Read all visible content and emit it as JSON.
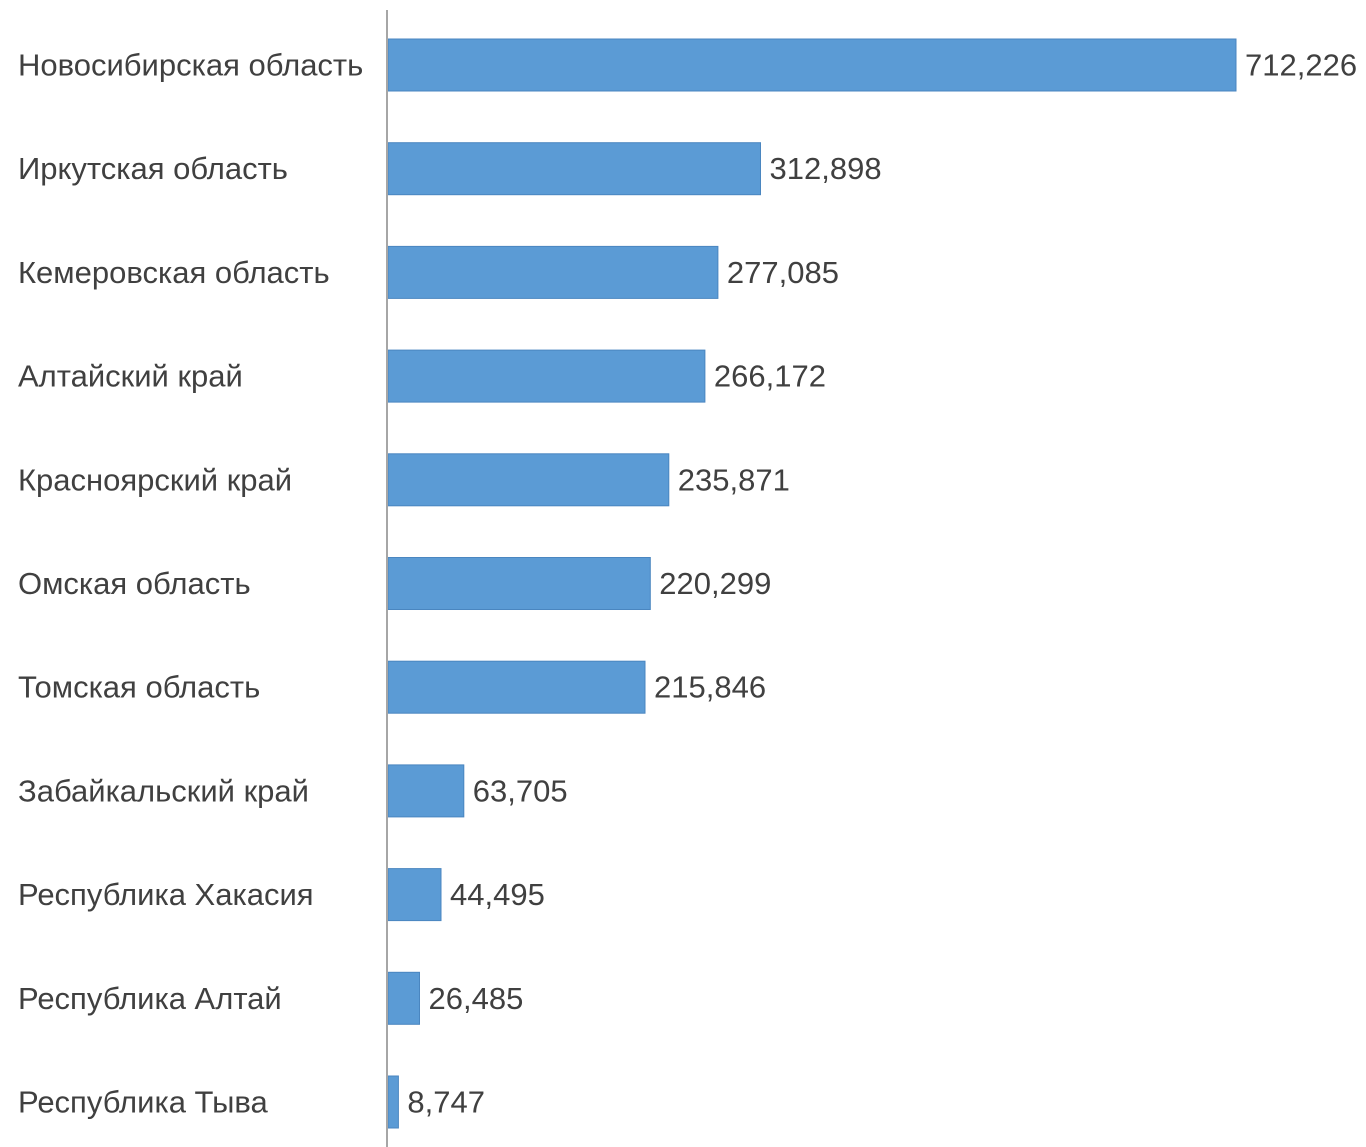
{
  "chart_data": {
    "type": "bar",
    "orientation": "horizontal",
    "title": "",
    "xlabel": "",
    "ylabel": "",
    "categories": [
      "Новосибирская область",
      "Иркутская область",
      "Кемеровская область",
      "Алтайский край",
      "Красноярский край",
      "Омская область",
      "Томская область",
      "Забайкальский край",
      "Республика Хакасия",
      "Республика Алтай",
      "Республика Тыва"
    ],
    "values": [
      712226,
      312898,
      277085,
      266172,
      235871,
      220299,
      215846,
      63705,
      44495,
      26485,
      8747
    ],
    "value_labels": [
      "712,226",
      "312,898",
      "277,085",
      "266,172",
      "235,871",
      "220,299",
      "215,846",
      "63,705",
      "44,495",
      "26,485",
      "8,747"
    ],
    "xlim": [
      0,
      712226
    ],
    "grid": false,
    "legend": "none",
    "bar_color": "#5B9BD5",
    "axis_color": "#A6A6A6",
    "text_color": "#404040"
  }
}
